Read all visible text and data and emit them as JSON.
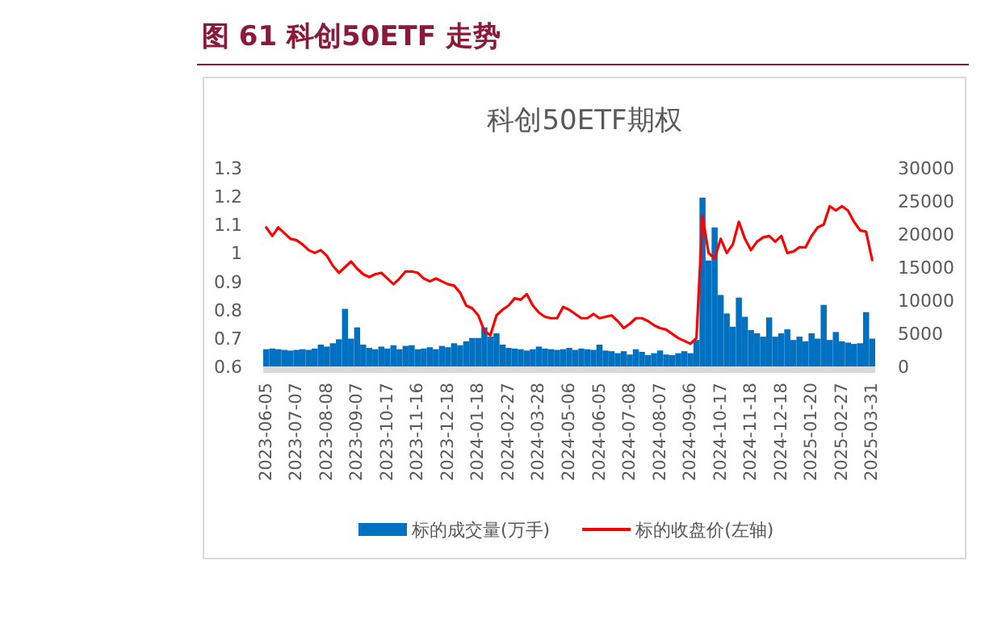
{
  "chart_data": {
    "type": "bar",
    "title": "科创50ETF期权",
    "annotations": [
      "图 61    科创50ETF 走势"
    ],
    "categories": [
      "2023-06-05",
      null,
      null,
      null,
      null,
      "2023-07-07",
      null,
      null,
      null,
      null,
      "2023-08-08",
      null,
      null,
      null,
      null,
      "2023-09-07",
      null,
      null,
      null,
      null,
      "2023-10-17",
      null,
      null,
      null,
      null,
      "2023-11-16",
      null,
      null,
      null,
      null,
      "2023-12-18",
      null,
      null,
      null,
      null,
      "2024-01-18",
      null,
      null,
      null,
      null,
      "2024-02-27",
      null,
      null,
      null,
      null,
      "2024-03-28",
      null,
      null,
      null,
      null,
      "2024-05-06",
      null,
      null,
      null,
      null,
      "2024-06-05",
      null,
      null,
      null,
      null,
      "2024-07-08",
      null,
      null,
      null,
      null,
      "2024-08-07",
      null,
      null,
      null,
      null,
      "2024-09-06",
      null,
      null,
      null,
      null,
      "2024-10-17",
      null,
      null,
      null,
      null,
      "2024-11-18",
      null,
      null,
      null,
      null,
      "2024-12-18",
      null,
      null,
      null,
      null,
      "2025-01-20",
      null,
      null,
      null,
      null,
      "2025-02-27",
      null,
      null,
      null,
      null,
      "2025-03-31"
    ],
    "series": [
      {
        "name": "标的成交量(万手)",
        "axis": "y2",
        "color": "#0070c0",
        "values": [
          2600,
          2700,
          2600,
          2500,
          2400,
          2500,
          2600,
          2500,
          2700,
          3300,
          3000,
          3500,
          4100,
          8700,
          4200,
          5900,
          3300,
          2800,
          2600,
          3000,
          2700,
          3200,
          2600,
          3100,
          3200,
          2600,
          2700,
          2900,
          2600,
          3100,
          2900,
          3500,
          3200,
          3800,
          4300,
          4300,
          5900,
          4500,
          5000,
          3300,
          2800,
          2700,
          2600,
          2400,
          2600,
          3000,
          2700,
          2600,
          2500,
          2600,
          2800,
          2500,
          2700,
          2600,
          2500,
          3300,
          2400,
          2300,
          2000,
          2300,
          1800,
          2600,
          2200,
          1700,
          2000,
          2400,
          1800,
          1700,
          2000,
          2300,
          2000,
          4000,
          25500,
          16000,
          21000,
          10800,
          8000,
          6000,
          10400,
          7500,
          5500,
          5000,
          4500,
          7400,
          4500,
          5000,
          5600,
          4000,
          4500,
          3800,
          5000,
          4200,
          9300,
          4000,
          5200,
          3800,
          3600,
          3400,
          3500,
          8200,
          4200
        ]
      },
      {
        "name": "标的收盘价(左轴)",
        "type": "line",
        "color": "#ff0000",
        "values": [
          1.09,
          1.06,
          1.09,
          1.07,
          1.05,
          1.045,
          1.03,
          1.01,
          1.0,
          1.01,
          0.99,
          0.955,
          0.93,
          0.95,
          0.97,
          0.945,
          0.925,
          0.915,
          0.925,
          0.93,
          0.91,
          0.89,
          0.91,
          0.935,
          0.935,
          0.93,
          0.91,
          0.9,
          0.91,
          0.9,
          0.89,
          0.885,
          0.86,
          0.815,
          0.805,
          0.78,
          0.725,
          0.71,
          0.78,
          0.8,
          0.815,
          0.84,
          0.835,
          0.855,
          0.815,
          0.79,
          0.775,
          0.77,
          0.77,
          0.81,
          0.8,
          0.785,
          0.77,
          0.77,
          0.785,
          0.77,
          0.775,
          0.78,
          0.76,
          0.735,
          0.75,
          0.77,
          0.77,
          0.76,
          0.745,
          0.735,
          0.73,
          0.715,
          0.7,
          0.69,
          0.68,
          0.7,
          1.13,
          1.0,
          0.98,
          1.05,
          1.0,
          1.03,
          1.11,
          1.05,
          1.01,
          1.04,
          1.055,
          1.06,
          1.04,
          1.06,
          1.0,
          1.005,
          1.02,
          1.02,
          1.06,
          1.09,
          1.1,
          1.165,
          1.15,
          1.165,
          1.15,
          1.11,
          1.08,
          1.075,
          0.975
        ]
      }
    ],
    "ylim": [
      0.6,
      1.3
    ],
    "yticks": [
      0.6,
      0.7,
      0.8,
      0.9,
      1,
      1.1,
      1.2,
      1.3
    ],
    "y2lim": [
      0,
      30000
    ],
    "y2ticks": [
      0,
      5000,
      10000,
      15000,
      20000,
      25000,
      30000
    ],
    "legend": "bottom"
  }
}
